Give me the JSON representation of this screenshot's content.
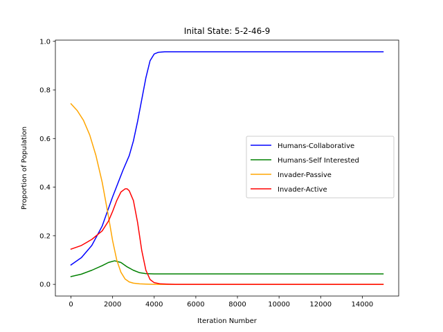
{
  "chart_data": {
    "type": "line",
    "title": "Inital State: 5-2-46-9",
    "xlabel": "Iteration Number",
    "ylabel": "Proportion of Population",
    "xlim": [
      -750,
      15750
    ],
    "ylim": [
      -0.048,
      1.005
    ],
    "xticks": [
      0,
      2000,
      4000,
      6000,
      8000,
      10000,
      12000,
      14000
    ],
    "xtick_labels": [
      "0",
      "2000",
      "4000",
      "6000",
      "8000",
      "10000",
      "12000",
      "14000"
    ],
    "yticks": [
      0.0,
      0.2,
      0.4,
      0.6,
      0.8,
      1.0
    ],
    "ytick_labels": [
      "0.0",
      "0.2",
      "0.4",
      "0.6",
      "0.8",
      "1.0"
    ],
    "grid": false,
    "legend_position": "center-right",
    "series": [
      {
        "name": "Humans-Collaborative",
        "color": "#0000ff",
        "x": [
          0,
          500,
          1000,
          1500,
          2000,
          2500,
          2800,
          3000,
          3200,
          3400,
          3600,
          3800,
          4000,
          4200,
          4500,
          5000,
          6000,
          8000,
          10000,
          12000,
          15000
        ],
        "y": [
          0.08,
          0.11,
          0.16,
          0.24,
          0.36,
          0.47,
          0.53,
          0.59,
          0.67,
          0.76,
          0.85,
          0.92,
          0.948,
          0.955,
          0.957,
          0.957,
          0.957,
          0.957,
          0.957,
          0.957,
          0.957
        ]
      },
      {
        "name": "Humans-Self Interested",
        "color": "#008000",
        "x": [
          0,
          500,
          1000,
          1500,
          1800,
          2100,
          2400,
          2700,
          3000,
          3300,
          3600,
          4000,
          4500,
          6000,
          10000,
          15000
        ],
        "y": [
          0.032,
          0.042,
          0.058,
          0.077,
          0.09,
          0.097,
          0.09,
          0.072,
          0.058,
          0.048,
          0.044,
          0.043,
          0.043,
          0.043,
          0.043,
          0.043
        ]
      },
      {
        "name": "Invader-Passive",
        "color": "#ffa500",
        "x": [
          0,
          300,
          600,
          900,
          1200,
          1500,
          1800,
          2000,
          2200,
          2400,
          2600,
          2800,
          3000,
          3300,
          3600,
          4000,
          5000,
          15000
        ],
        "y": [
          0.743,
          0.715,
          0.675,
          0.615,
          0.53,
          0.42,
          0.28,
          0.18,
          0.1,
          0.05,
          0.022,
          0.01,
          0.005,
          0.002,
          0.001,
          0.0,
          0.0,
          0.0
        ]
      },
      {
        "name": "Invader-Active",
        "color": "#ff0000",
        "x": [
          0,
          500,
          1000,
          1500,
          1800,
          2000,
          2200,
          2400,
          2600,
          2700,
          2800,
          3000,
          3200,
          3400,
          3600,
          3800,
          4000,
          4300,
          4600,
          5000,
          15000
        ],
        "y": [
          0.145,
          0.16,
          0.185,
          0.22,
          0.26,
          0.3,
          0.345,
          0.38,
          0.393,
          0.393,
          0.385,
          0.345,
          0.255,
          0.14,
          0.058,
          0.02,
          0.007,
          0.002,
          0.001,
          0.0,
          0.0
        ]
      }
    ]
  }
}
